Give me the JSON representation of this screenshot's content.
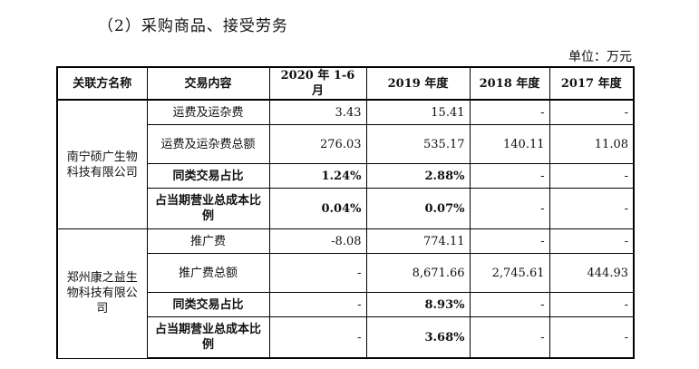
{
  "heading": "（2）采购商品、接受劳务",
  "unit": "单位：万元",
  "table": {
    "headers": [
      "关联方名称",
      "交易内容",
      "2020 年 1-6 月",
      "2019 年度",
      "2018 年度",
      "2017 年度"
    ],
    "groups": [
      {
        "company": "南宁硕广生物科技有限公司",
        "rows": [
          {
            "item": "运费及运杂费",
            "v2020": "3.43",
            "v2019": "15.41",
            "v2018": "-",
            "v2017": "-"
          },
          {
            "item": "运费及运杂费总额",
            "v2020": "276.03",
            "v2019": "535.17",
            "v2018": "140.11",
            "v2017": "11.08"
          },
          {
            "item": "同类交易占比",
            "v2020": "1.24%",
            "v2019": "2.88%",
            "v2018": "-",
            "v2017": "-"
          },
          {
            "item": "占当期营业总成本比例",
            "v2020": "0.04%",
            "v2019": "0.07%",
            "v2018": "-",
            "v2017": "-"
          }
        ]
      },
      {
        "company": "郑州康之益生物科技有限公司",
        "rows": [
          {
            "item": "推广费",
            "v2020": "-8.08",
            "v2019": "774.11",
            "v2018": "-",
            "v2017": "-"
          },
          {
            "item": "推广费总额",
            "v2020": "-",
            "v2019": "8,671.66",
            "v2018": "2,745.61",
            "v2017": "444.93"
          },
          {
            "item": "同类交易占比",
            "v2020": "-",
            "v2019": "8.93%",
            "v2018": "-",
            "v2017": "-"
          },
          {
            "item": "占当期营业总成本比例",
            "v2020": "-",
            "v2019": "3.68%",
            "v2018": "-",
            "v2017": "-"
          }
        ]
      }
    ]
  }
}
